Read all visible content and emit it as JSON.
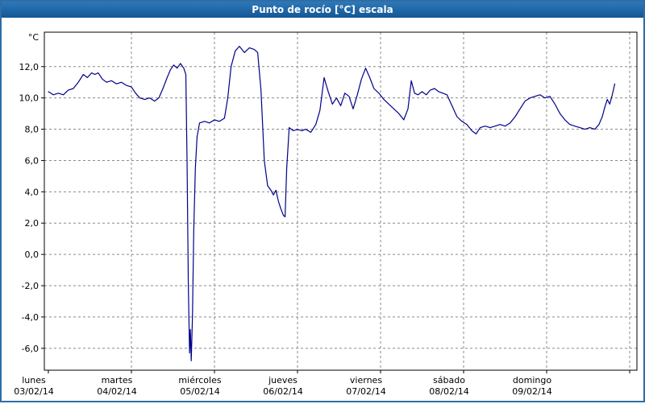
{
  "window": {
    "title": "Punto de rocío [°C] escala"
  },
  "colors": {
    "title_bar": "#1c63a9",
    "window_border": "#2e6da4",
    "line": "#00008b",
    "grid": "#8a8a8a"
  },
  "chart_data": {
    "type": "line",
    "title": "Punto de rocío [°C] escala",
    "ylabel": "°C",
    "xlabel": "",
    "grid": "dashed",
    "legend": "none",
    "ylim": [
      -7.4,
      14.2
    ],
    "xlim_days": [
      0,
      7.09
    ],
    "y_ticks": [
      {
        "value": 12,
        "label": "12,0"
      },
      {
        "value": 10,
        "label": "10,0"
      },
      {
        "value": 8,
        "label": "8,0"
      },
      {
        "value": 6,
        "label": "6,0"
      },
      {
        "value": 4,
        "label": "4,0"
      },
      {
        "value": 2,
        "label": "2,0"
      },
      {
        "value": 0,
        "label": "0,0"
      },
      {
        "value": -2,
        "label": "-2,0"
      },
      {
        "value": -4,
        "label": "-4,0"
      },
      {
        "value": -6,
        "label": "-6,0"
      }
    ],
    "x_days": [
      {
        "name": "lunes",
        "date": "03/02/14"
      },
      {
        "name": "martes",
        "date": "04/02/14"
      },
      {
        "name": "miércoles",
        "date": "05/02/14"
      },
      {
        "name": "jueves",
        "date": "06/02/14"
      },
      {
        "name": "viernes",
        "date": "07/02/14"
      },
      {
        "name": "sábado",
        "date": "08/02/14"
      },
      {
        "name": "domingo",
        "date": "09/02/14"
      }
    ],
    "series": [
      {
        "name": "Punto de rocío [°C]",
        "color": "#00008b",
        "points": [
          [
            0.0,
            10.4
          ],
          [
            0.06,
            10.2
          ],
          [
            0.12,
            10.3
          ],
          [
            0.18,
            10.2
          ],
          [
            0.24,
            10.5
          ],
          [
            0.3,
            10.6
          ],
          [
            0.36,
            11.0
          ],
          [
            0.42,
            11.5
          ],
          [
            0.47,
            11.3
          ],
          [
            0.52,
            11.6
          ],
          [
            0.56,
            11.5
          ],
          [
            0.6,
            11.6
          ],
          [
            0.65,
            11.2
          ],
          [
            0.7,
            11.0
          ],
          [
            0.76,
            11.1
          ],
          [
            0.82,
            10.9
          ],
          [
            0.88,
            11.0
          ],
          [
            0.94,
            10.8
          ],
          [
            1.0,
            10.7
          ],
          [
            1.05,
            10.3
          ],
          [
            1.1,
            10.0
          ],
          [
            1.16,
            9.9
          ],
          [
            1.22,
            10.0
          ],
          [
            1.28,
            9.8
          ],
          [
            1.33,
            10.0
          ],
          [
            1.38,
            10.6
          ],
          [
            1.43,
            11.3
          ],
          [
            1.47,
            11.8
          ],
          [
            1.51,
            12.1
          ],
          [
            1.55,
            11.9
          ],
          [
            1.59,
            12.2
          ],
          [
            1.63,
            11.9
          ],
          [
            1.655,
            11.5
          ],
          [
            1.67,
            6.0
          ],
          [
            1.685,
            -2.0
          ],
          [
            1.7,
            -6.3
          ],
          [
            1.71,
            -4.8
          ],
          [
            1.72,
            -6.8
          ],
          [
            1.735,
            -4.0
          ],
          [
            1.75,
            1.5
          ],
          [
            1.77,
            5.5
          ],
          [
            1.79,
            7.5
          ],
          [
            1.82,
            8.4
          ],
          [
            1.88,
            8.5
          ],
          [
            1.94,
            8.4
          ],
          [
            2.0,
            8.6
          ],
          [
            2.06,
            8.5
          ],
          [
            2.12,
            8.7
          ],
          [
            2.16,
            10.0
          ],
          [
            2.2,
            12.0
          ],
          [
            2.25,
            13.0
          ],
          [
            2.3,
            13.3
          ],
          [
            2.36,
            12.9
          ],
          [
            2.42,
            13.2
          ],
          [
            2.48,
            13.1
          ],
          [
            2.52,
            12.9
          ],
          [
            2.56,
            10.5
          ],
          [
            2.6,
            6.0
          ],
          [
            2.64,
            4.4
          ],
          [
            2.68,
            4.1
          ],
          [
            2.71,
            3.8
          ],
          [
            2.74,
            4.1
          ],
          [
            2.77,
            3.4
          ],
          [
            2.8,
            2.9
          ],
          [
            2.83,
            2.5
          ],
          [
            2.85,
            2.4
          ],
          [
            2.87,
            5.5
          ],
          [
            2.9,
            8.1
          ],
          [
            2.95,
            7.9
          ],
          [
            3.0,
            8.0
          ],
          [
            3.05,
            7.9
          ],
          [
            3.1,
            8.0
          ],
          [
            3.16,
            7.8
          ],
          [
            3.22,
            8.3
          ],
          [
            3.27,
            9.2
          ],
          [
            3.32,
            11.3
          ],
          [
            3.37,
            10.4
          ],
          [
            3.42,
            9.6
          ],
          [
            3.47,
            10.0
          ],
          [
            3.52,
            9.5
          ],
          [
            3.57,
            10.3
          ],
          [
            3.62,
            10.1
          ],
          [
            3.67,
            9.3
          ],
          [
            3.72,
            10.2
          ],
          [
            3.77,
            11.2
          ],
          [
            3.82,
            11.9
          ],
          [
            3.87,
            11.3
          ],
          [
            3.92,
            10.6
          ],
          [
            3.98,
            10.3
          ],
          [
            4.04,
            9.9
          ],
          [
            4.1,
            9.6
          ],
          [
            4.16,
            9.3
          ],
          [
            4.22,
            9.0
          ],
          [
            4.28,
            8.6
          ],
          [
            4.33,
            9.3
          ],
          [
            4.37,
            11.1
          ],
          [
            4.41,
            10.3
          ],
          [
            4.45,
            10.2
          ],
          [
            4.5,
            10.4
          ],
          [
            4.55,
            10.2
          ],
          [
            4.6,
            10.5
          ],
          [
            4.65,
            10.6
          ],
          [
            4.7,
            10.4
          ],
          [
            4.75,
            10.3
          ],
          [
            4.8,
            10.2
          ],
          [
            4.86,
            9.5
          ],
          [
            4.92,
            8.8
          ],
          [
            4.98,
            8.5
          ],
          [
            5.04,
            8.3
          ],
          [
            5.1,
            7.9
          ],
          [
            5.15,
            7.7
          ],
          [
            5.2,
            8.1
          ],
          [
            5.26,
            8.2
          ],
          [
            5.32,
            8.1
          ],
          [
            5.38,
            8.2
          ],
          [
            5.44,
            8.3
          ],
          [
            5.5,
            8.2
          ],
          [
            5.56,
            8.4
          ],
          [
            5.62,
            8.8
          ],
          [
            5.68,
            9.3
          ],
          [
            5.74,
            9.8
          ],
          [
            5.8,
            10.0
          ],
          [
            5.86,
            10.1
          ],
          [
            5.92,
            10.2
          ],
          [
            5.98,
            10.0
          ],
          [
            6.04,
            10.1
          ],
          [
            6.1,
            9.6
          ],
          [
            6.16,
            9.0
          ],
          [
            6.22,
            8.6
          ],
          [
            6.28,
            8.3
          ],
          [
            6.34,
            8.2
          ],
          [
            6.4,
            8.1
          ],
          [
            6.46,
            8.0
          ],
          [
            6.52,
            8.1
          ],
          [
            6.58,
            8.0
          ],
          [
            6.63,
            8.3
          ],
          [
            6.67,
            8.8
          ],
          [
            6.7,
            9.4
          ],
          [
            6.73,
            9.9
          ],
          [
            6.76,
            9.6
          ],
          [
            6.79,
            10.2
          ],
          [
            6.82,
            10.9
          ]
        ]
      }
    ]
  }
}
